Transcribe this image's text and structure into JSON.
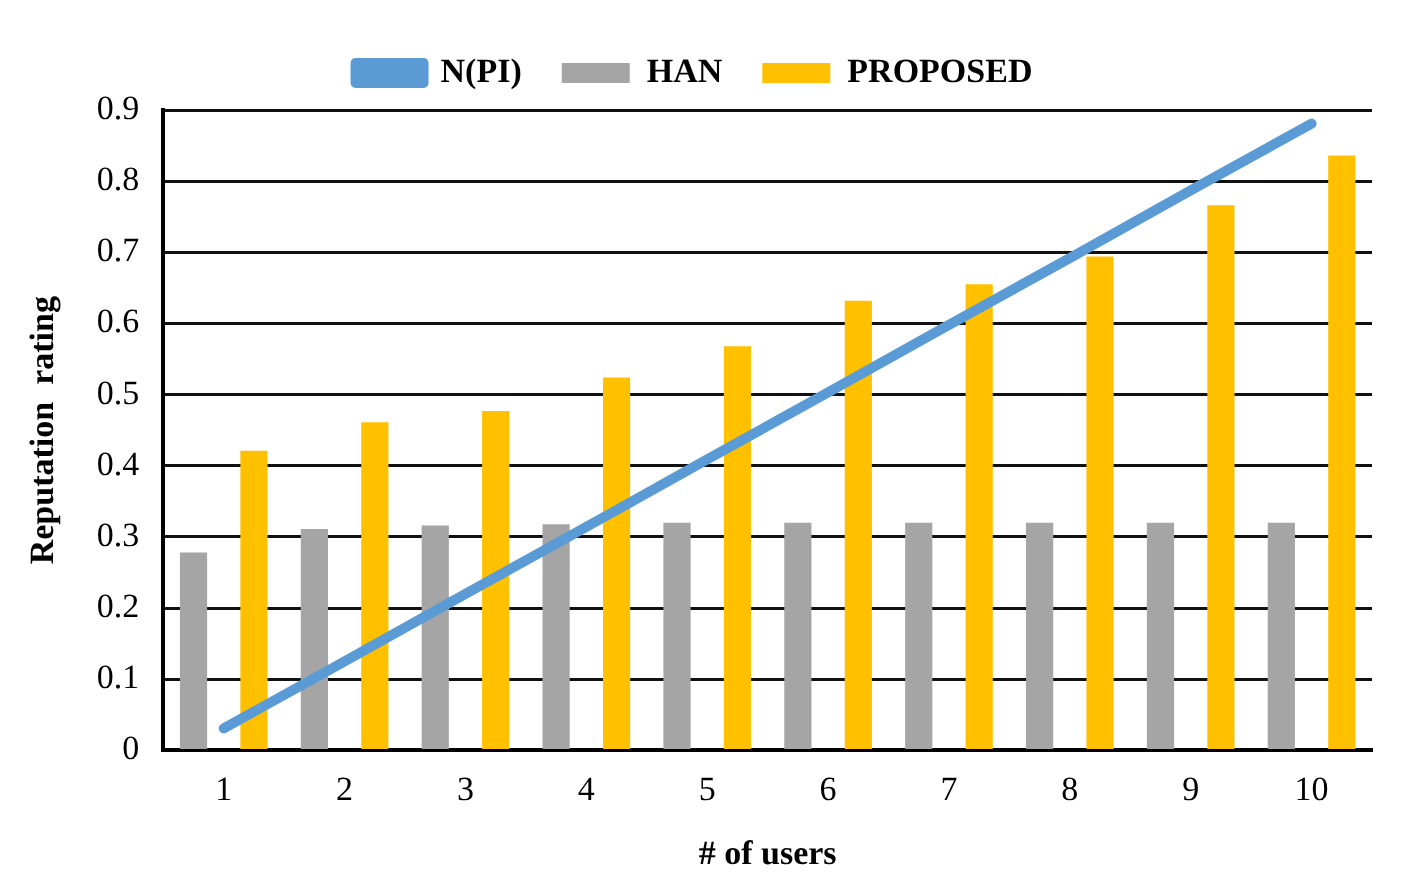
{
  "chart_data": {
    "type": "bar",
    "xlabel": "# of users",
    "ylabel": "Reputation  rating",
    "categories": [
      "1",
      "2",
      "3",
      "4",
      "5",
      "6",
      "7",
      "8",
      "9",
      "10"
    ],
    "series": [
      {
        "name": "HAN",
        "color": "#a5a5a5",
        "values": [
          0.278,
          0.311,
          0.316,
          0.318,
          0.32,
          0.32,
          0.32,
          0.32,
          0.32,
          0.32
        ]
      },
      {
        "name": "PROPOSED",
        "color": "#ffc000",
        "values": [
          0.421,
          0.461,
          0.477,
          0.524,
          0.568,
          0.632,
          0.655,
          0.694,
          0.766,
          0.836
        ]
      },
      {
        "name": "N(PI)",
        "type": "line",
        "color": "#5b9bd5",
        "values": [
          0.031,
          0.125,
          0.22,
          0.314,
          0.409,
          0.503,
          0.598,
          0.692,
          0.787,
          0.881
        ]
      }
    ],
    "ylim": [
      0,
      0.9
    ],
    "yticks": [
      0,
      0.1,
      0.2,
      0.3,
      0.4,
      0.5,
      0.6,
      0.7,
      0.8,
      0.9
    ],
    "grid": "y",
    "legend": "top",
    "marker": "none"
  }
}
